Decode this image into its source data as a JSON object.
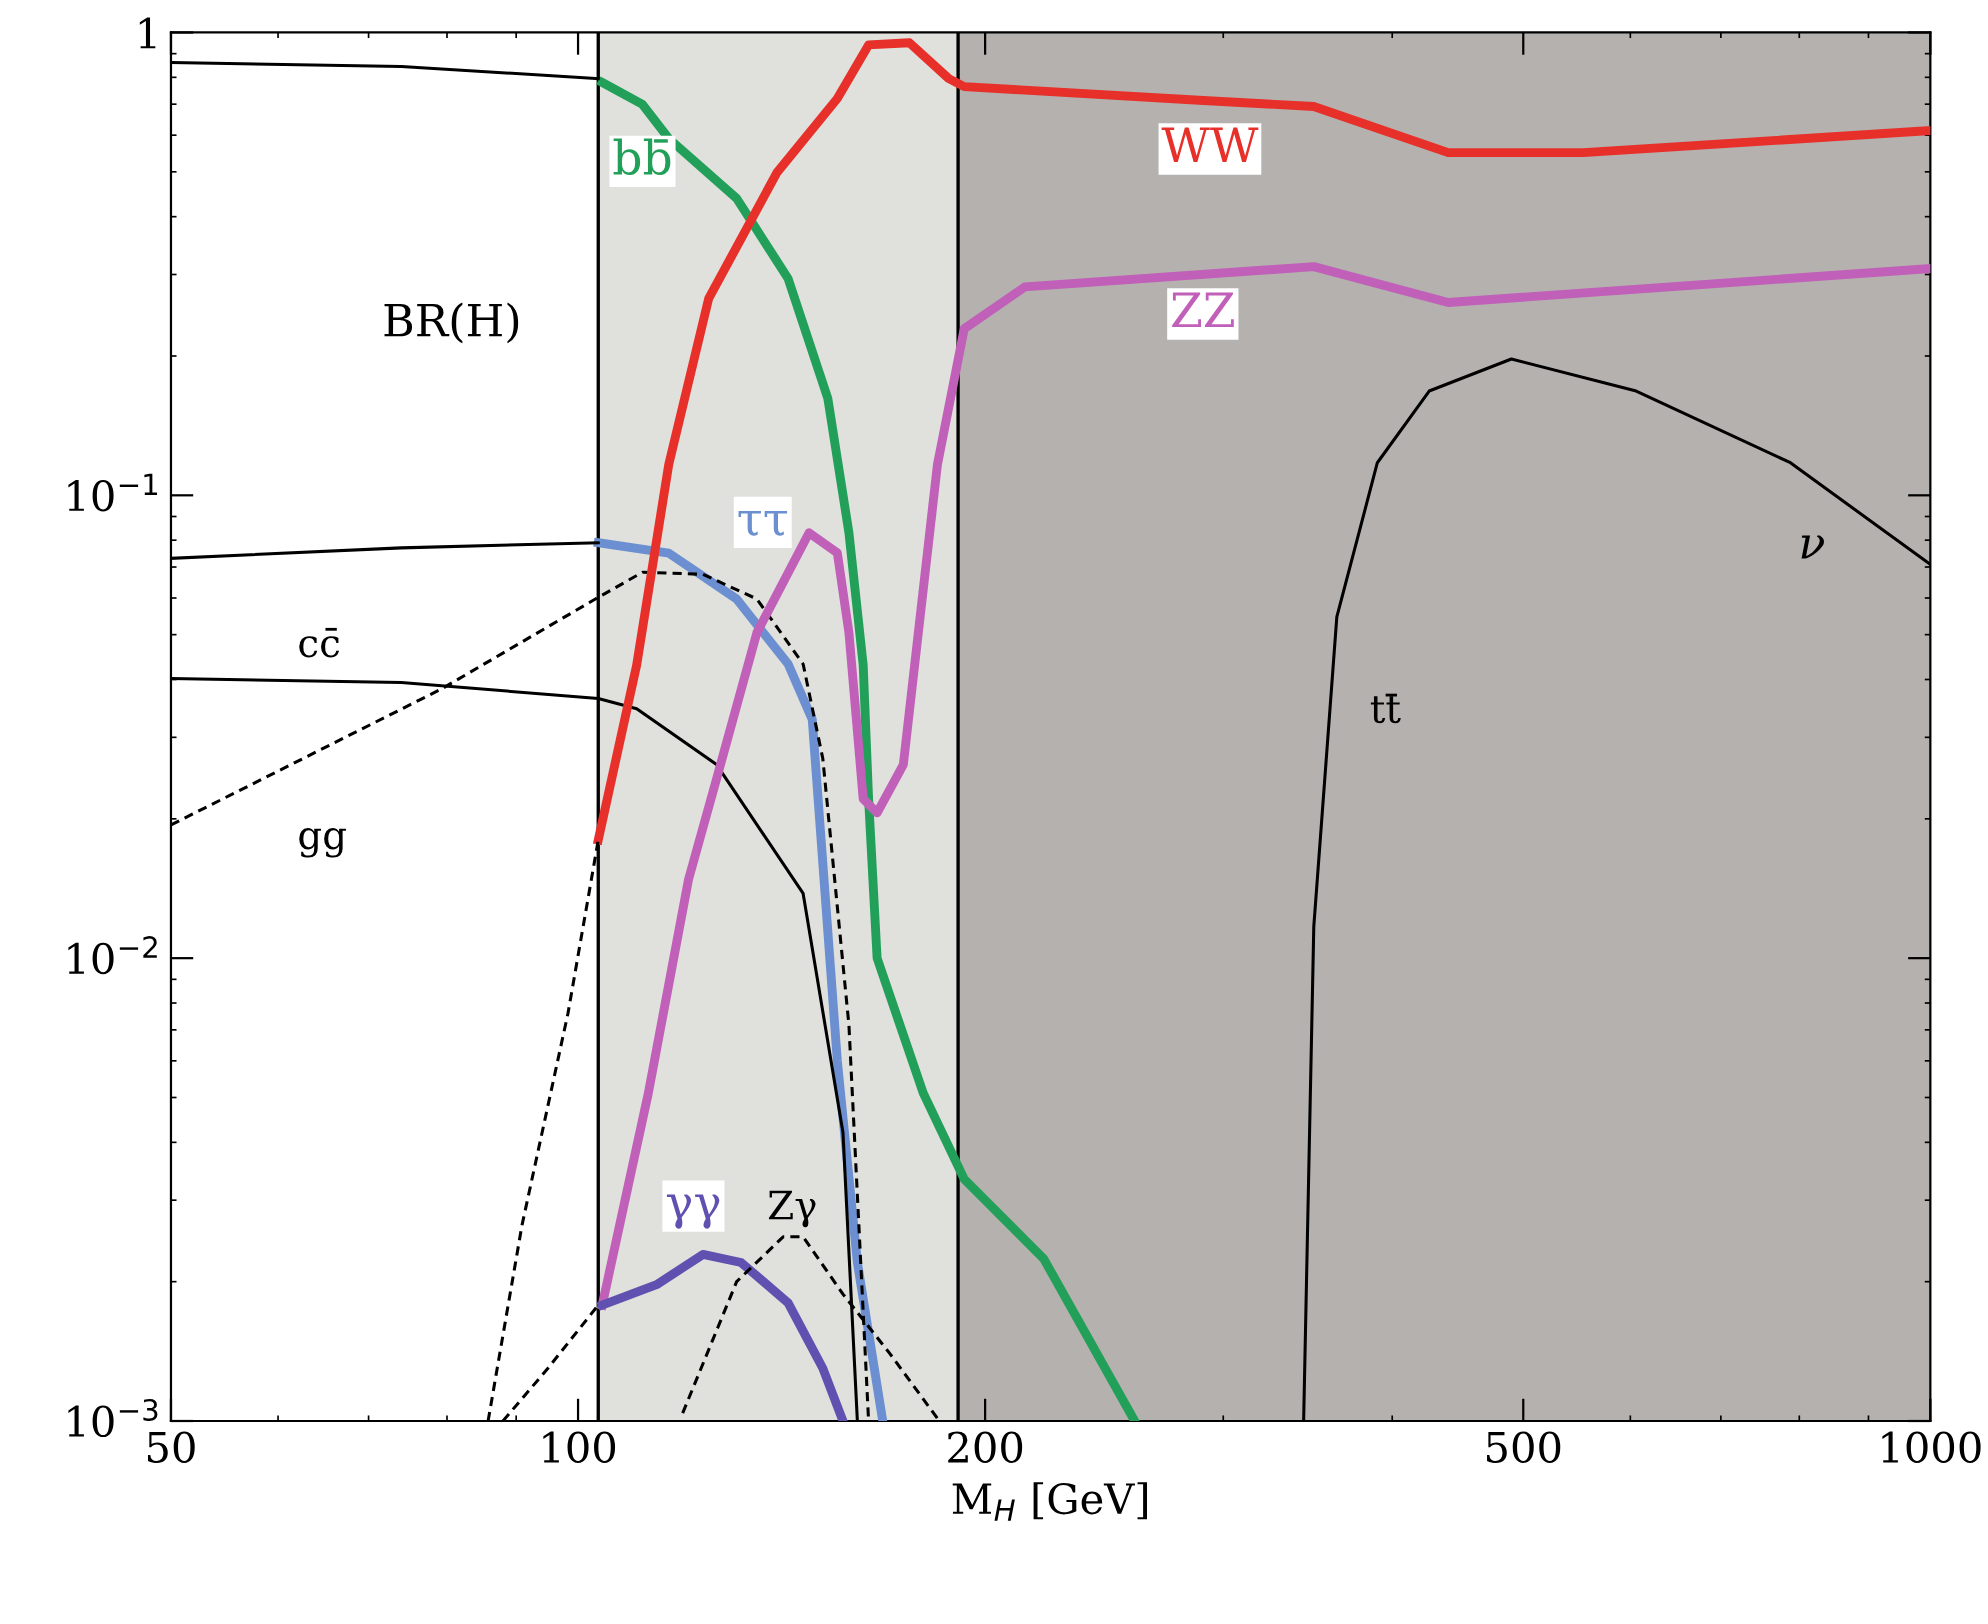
{
  "chart_data": {
    "type": "line",
    "xlabel": "M$_{H}$ [GeV]",
    "log": "xy",
    "grid": false,
    "legend": false,
    "xlim": [
      50,
      1000
    ],
    "xticks": [
      50,
      100,
      200,
      500,
      1000
    ],
    "ylim": [
      0.001,
      1
    ],
    "yticks": [
      {
        "value": 0.001,
        "label": "10$^{−3}$"
      },
      {
        "value": 0.01,
        "label": "10$^{−2}$"
      },
      {
        "value": 0.1,
        "label": "10$^{−1}$"
      },
      1
    ],
    "annotations": [
      "BR(H)",
      "ν"
    ],
    "bands": [
      {
        "axis": "x",
        "from": 103.5,
        "to": 191,
        "color": "#e0e0dc"
      },
      {
        "axis": "x",
        "from": 191,
        "to": 1000,
        "color": "#b5b1ae"
      }
    ],
    "ref_lines": [
      {
        "axis": "x",
        "value": 103.5,
        "color": "#000000"
      },
      {
        "axis": "x",
        "value": 191,
        "color": "#000000"
      }
    ],
    "series": [
      {
        "name": "bb̄",
        "color": "#22a05a",
        "x": [
          104.2,
          111.6,
          116.7,
          131,
          143,
          153,
          158.6,
          162.5,
          164,
          166.4,
          180,
          193,
          221,
          258
        ],
        "values": [
          0.78,
          0.699,
          0.59,
          0.438,
          0.294,
          0.162,
          0.083,
          0.043,
          0.0221,
          0.01,
          0.00511,
          0.00333,
          0.00224,
          0.001
        ]
      },
      {
        "color": "#000000",
        "x": [
          50,
          74,
          103.5
        ],
        "values": [
          0.861,
          0.844,
          0.795
        ]
      },
      {
        "name": "ττ",
        "color": "#6b8fd0",
        "x": [
          103.5,
          116.7,
          131,
          143,
          149,
          155.5,
          160.9,
          168
        ],
        "values": [
          0.079,
          0.075,
          0.0597,
          0.0432,
          0.0328,
          0.006,
          0.0022,
          0.001
        ]
      },
      {
        "color": "#000000",
        "x": [
          50,
          74,
          103.5
        ],
        "values": [
          0.0731,
          0.077,
          0.079
        ]
      },
      {
        "name": "cc̄",
        "color": "#000000",
        "x": [
          50,
          74,
          103.5,
          110.5,
          126.6,
          146.7,
          157,
          160.9
        ],
        "values": [
          0.0402,
          0.0394,
          0.0364,
          0.0346,
          0.0262,
          0.0138,
          0.0042,
          0.001
        ]
      },
      {
        "name": "gg",
        "color": "#000000",
        "line_style": "dashed",
        "x": [
          50,
          79.3,
          103,
          111.6,
          123.7,
          135.6,
          146.7,
          151.7,
          158.6,
          164
        ],
        "values": [
          0.0194,
          0.0382,
          0.0597,
          0.0682,
          0.0675,
          0.0597,
          0.0432,
          0.027,
          0.00717,
          0.001
        ]
      },
      {
        "name": "WW",
        "color": "#e8302a",
        "x": [
          103.5,
          110.5,
          116.7,
          124.9,
          140.3,
          155.5,
          164,
          175.8,
          188,
          193,
          290,
          350,
          440,
          554,
          1000
        ],
        "values": [
          0.018,
          0.043,
          0.1166,
          0.266,
          0.498,
          0.72,
          0.94,
          0.95,
          0.795,
          0.764,
          0.713,
          0.692,
          0.55,
          0.55,
          0.614
        ]
      },
      {
        "color": "#000000",
        "line_style": "dashed",
        "x": [
          85.8,
          90.9,
          98.3,
          103.5
        ],
        "values": [
          0.001,
          0.00265,
          0.0076,
          0.018
        ]
      },
      {
        "name": "ZZ",
        "color": "#c060b8",
        "x": [
          104.2,
          112.7,
          120.7,
          126.6,
          135.6,
          148.2,
          155.5,
          158.6,
          162.5,
          166.4,
          174,
          184.4,
          193,
          214,
          350,
          440,
          1000
        ],
        "values": [
          0.00178,
          0.0051,
          0.0148,
          0.0244,
          0.0505,
          0.083,
          0.0751,
          0.0505,
          0.0221,
          0.0206,
          0.0262,
          0.1165,
          0.229,
          0.282,
          0.312,
          0.261,
          0.309
        ]
      },
      {
        "color": "#000000",
        "line_style": "dashed",
        "x": [
          88,
          95,
          103.5
        ],
        "values": [
          0.001,
          0.0013,
          0.00178
        ]
      },
      {
        "name": "γγ",
        "color": "#6050b0",
        "x": [
          104.2,
          114.3,
          123.7,
          132,
          143,
          151.7,
          157
        ],
        "values": [
          0.00178,
          0.00197,
          0.00229,
          0.0022,
          0.0018,
          0.0013,
          0.001
        ]
      },
      {
        "name": "Zγ",
        "color": "#000000",
        "line_style": "dashed",
        "x": [
          119.5,
          131,
          141.8,
          146.7,
          157,
          170,
          185
        ],
        "values": [
          0.00104,
          0.002,
          0.0025,
          0.0025,
          0.00188,
          0.0014,
          0.001
        ]
      },
      {
        "name": "tt̄",
        "color": "#000000",
        "x": [
          344,
          350,
          364,
          390,
          426,
          490,
          606,
          788,
          1000
        ],
        "values": [
          0.001,
          0.0117,
          0.0546,
          0.1176,
          0.168,
          0.197,
          0.168,
          0.1176,
          0.0709
        ]
      }
    ]
  }
}
